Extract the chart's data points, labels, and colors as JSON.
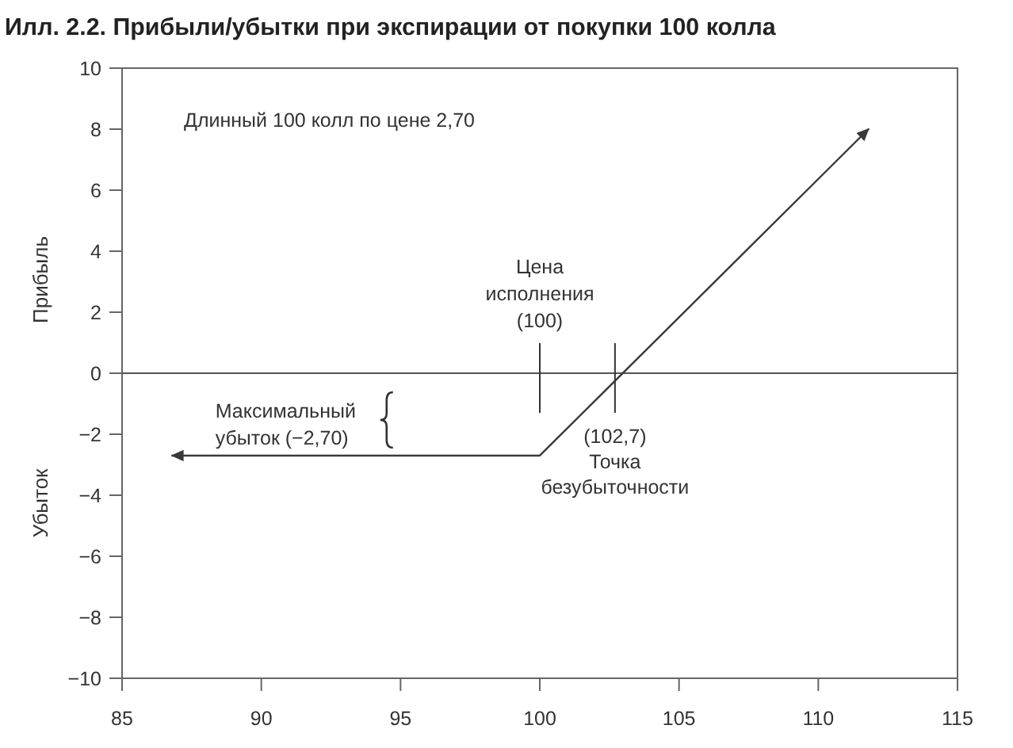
{
  "chart_data": {
    "type": "line",
    "title": "Илл. 2.2. Прибыли/убытки при экспирации от покупки 100 колла",
    "ylabel": "Прибыль",
    "series": [
      {
        "color": "#3a3a3a",
        "x": [
          86.8,
          100,
          111.8
        ],
        "values": [
          -2.7,
          -2.7,
          8
        ]
      }
    ],
    "xlim": [
      85,
      115
    ],
    "xticks": [
      85,
      90,
      95,
      100,
      105,
      110,
      115
    ],
    "ylim": [
      -10,
      10
    ],
    "yticks": [
      -10,
      -8,
      -6,
      -4,
      -2,
      0,
      2,
      4,
      6,
      8,
      10
    ],
    "ref_lines": [
      {
        "axis": "y",
        "value": 0,
        "color": "#555555"
      }
    ],
    "line_style": "solid",
    "annotations": [
      "Длинный 100 колл по цене 2,70",
      {
        "text": "Цена\nисполнения\n(100)",
        "x": 100,
        "y": 0
      },
      {
        "text": "Максимальный\nубыток (−2,70)",
        "x": 94.5,
        "y": -2.7
      },
      {
        "text": "(102,7)\nТочка\nбезубыточности",
        "x": 102.7,
        "y": 0
      },
      "Убыток"
    ]
  }
}
